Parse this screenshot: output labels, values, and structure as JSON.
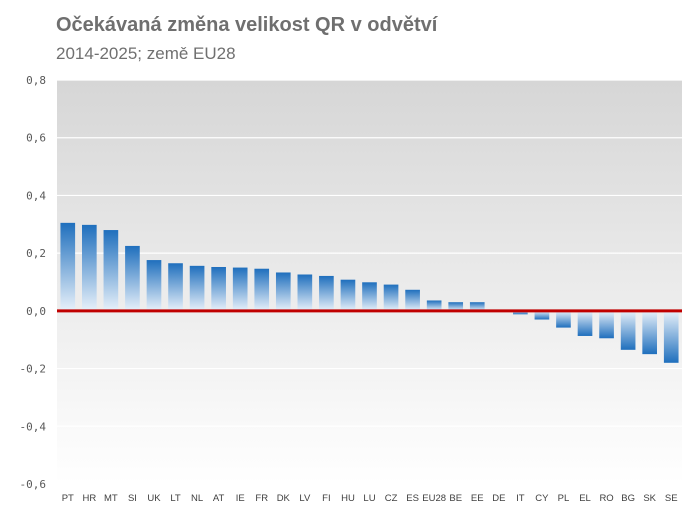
{
  "chart_data": {
    "type": "bar",
    "title": "Očekávaná změna velikost QR v odvětví",
    "subtitle": "2014-2025; země EU28",
    "xlabel": "",
    "ylabel": "",
    "ylim": [
      -0.6,
      0.8
    ],
    "yticks": [
      "0,8",
      "0,6",
      "0,4",
      "0,2",
      "0,0",
      "-0,2",
      "-0,4",
      "-0,6"
    ],
    "yticks_values": [
      0.8,
      0.6,
      0.4,
      0.2,
      0.0,
      -0.2,
      -0.4,
      -0.6
    ],
    "grid": true,
    "legend": "none",
    "categories": [
      "PT",
      "HR",
      "MT",
      "SI",
      "UK",
      "LT",
      "NL",
      "AT",
      "IE",
      "FR",
      "DK",
      "LV",
      "FI",
      "HU",
      "LU",
      "CZ",
      "ES",
      "EU28",
      "BE",
      "EE",
      "DE",
      "IT",
      "CY",
      "PL",
      "EL",
      "RO",
      "BG",
      "SK",
      "SE"
    ],
    "values": [
      0.305,
      0.298,
      0.28,
      0.225,
      0.176,
      0.165,
      0.156,
      0.152,
      0.15,
      0.146,
      0.133,
      0.126,
      0.121,
      0.108,
      0.099,
      0.091,
      0.073,
      0.036,
      0.03,
      0.03,
      0.0,
      -0.012,
      -0.03,
      -0.058,
      -0.087,
      -0.095,
      -0.135,
      -0.15,
      -0.18
    ],
    "colors": {
      "bar_top": "#1f6fbd",
      "bar_fade": "#e8f1fa",
      "zero_line": "#c00000",
      "plot_top": "#d6d6d6",
      "plot_bottom": "#ffffff",
      "grid": "#ffffff"
    }
  }
}
